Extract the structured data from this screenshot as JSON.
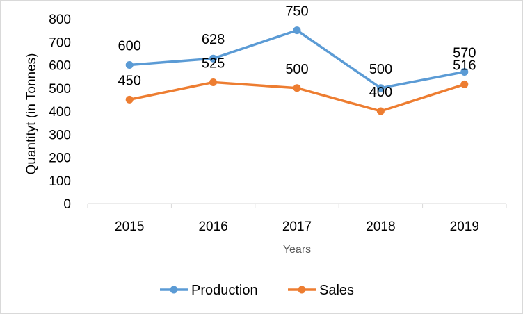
{
  "chart_data": {
    "type": "line",
    "title": "",
    "categories": [
      "2015",
      "2016",
      "2017",
      "2018",
      "2019"
    ],
    "series": [
      {
        "name": "Production",
        "values": [
          600,
          628,
          750,
          500,
          570
        ],
        "color": "#5B9BD5"
      },
      {
        "name": "Sales",
        "values": [
          450,
          525,
          500,
          400,
          516
        ],
        "color": "#ED7D31"
      }
    ],
    "xlabel": "Years",
    "ylabel": "Quantityt  (in Tonnes)",
    "ylim": [
      0,
      800
    ],
    "yticks": [
      0,
      100,
      200,
      300,
      400,
      500,
      600,
      700,
      800
    ],
    "grid": false,
    "legend": "bottom",
    "data_labels": true
  }
}
